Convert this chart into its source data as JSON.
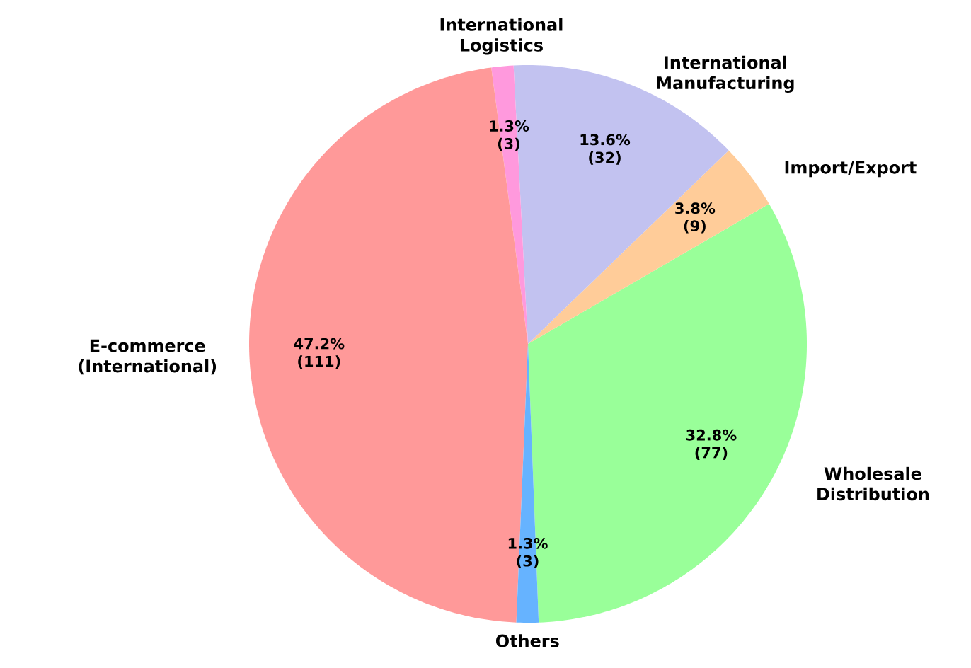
{
  "chart_data": {
    "type": "pie",
    "categories": [
      "Wholesale Distribution",
      "Import/Export",
      "International Manufacturing",
      "International Logistics",
      "E-commerce (International)",
      "Others"
    ],
    "values": [
      77,
      9,
      32,
      3,
      111,
      3
    ],
    "colors": [
      "#99ff99",
      "#ffcc99",
      "#c2c2f0",
      "#ff99dd",
      "#ff9999",
      "#66b3ff"
    ],
    "value_labels": [
      "32.8% (77)",
      "3.8% (9)",
      "13.6% (32)",
      "1.3% (3)",
      "47.2% (111)",
      "1.3% (3)"
    ]
  }
}
